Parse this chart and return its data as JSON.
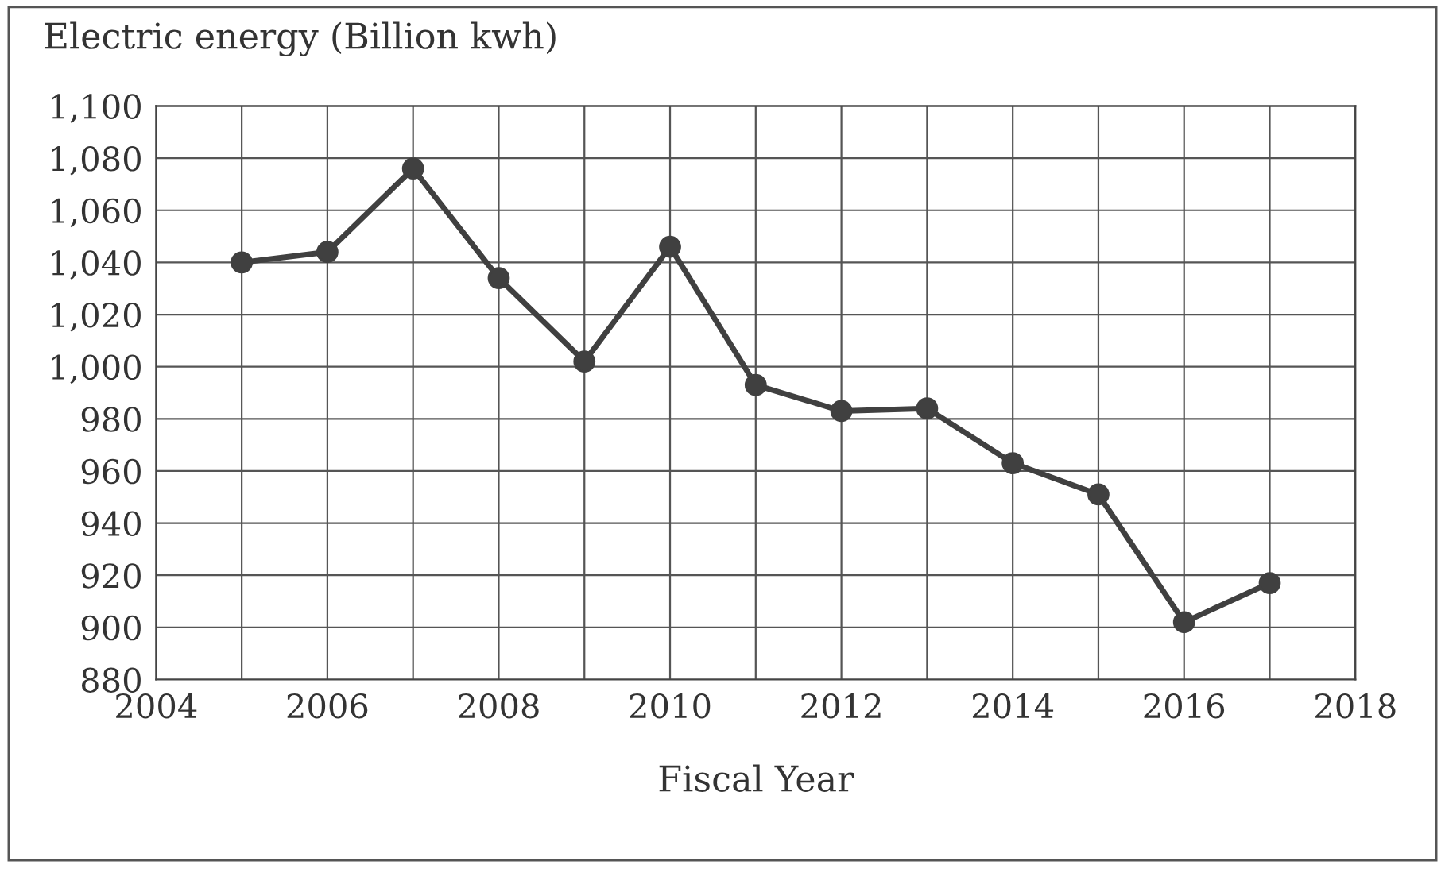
{
  "chart_data": {
    "type": "line",
    "title": "Electric energy (Billion kwh)",
    "xlabel": "Fiscal Year",
    "x": [
      2005,
      2006,
      2007,
      2008,
      2009,
      2010,
      2011,
      2012,
      2013,
      2014,
      2015,
      2016,
      2017
    ],
    "series": [
      {
        "color": "#404040",
        "values": [
          1040,
          1044,
          1076,
          1034,
          1002,
          1046,
          993,
          983,
          984,
          963,
          951,
          902,
          917
        ]
      }
    ],
    "xlim": [
      2004,
      2018
    ],
    "xticks": [
      2004,
      {
        "value": 2005,
        "label": null
      },
      2006,
      {
        "value": 2007,
        "label": null
      },
      2008,
      {
        "value": 2009,
        "label": null
      },
      2010,
      {
        "value": 2011,
        "label": null
      },
      2012,
      {
        "value": 2013,
        "label": null
      },
      2014,
      {
        "value": 2015,
        "label": null
      },
      2016,
      {
        "value": 2017,
        "label": null
      },
      2018
    ],
    "ylim": [
      880,
      1100
    ],
    "yticks": [
      {
        "value": 880,
        "label": "880"
      },
      {
        "value": 900,
        "label": "900"
      },
      {
        "value": 920,
        "label": "920"
      },
      {
        "value": 940,
        "label": "940"
      },
      {
        "value": 960,
        "label": "960"
      },
      {
        "value": 980,
        "label": "980"
      },
      {
        "value": 1000,
        "label": "1,000"
      },
      {
        "value": 1020,
        "label": "1,020"
      },
      {
        "value": 1040,
        "label": "1,040"
      },
      {
        "value": 1060,
        "label": "1,060"
      },
      {
        "value": 1080,
        "label": "1,080"
      },
      {
        "value": 1100,
        "label": "1,100"
      }
    ],
    "grid": true,
    "marker": "circle",
    "line_style": "solid",
    "legend": false
  }
}
